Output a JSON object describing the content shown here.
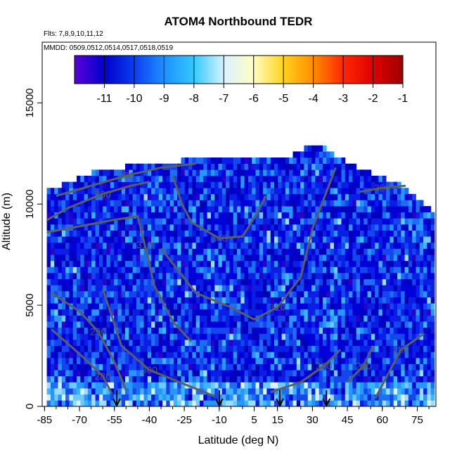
{
  "chart_data": {
    "type": "heatmap",
    "title": "ATOM4 Northbound TEDR",
    "subtitle_flights": "Flts: 7,8,9,10,11,12",
    "subtitle_dates": "MMDD: 0509,0512,0514,0517,0518,0519",
    "xlabel": "Latitude (deg N)",
    "ylabel": "Altitude (m)",
    "xlim": [
      -86,
      83
    ],
    "ylim": [
      0,
      18000
    ],
    "x_ticks": [
      -85,
      -70,
      -55,
      -40,
      -25,
      -10,
      5,
      15,
      30,
      45,
      60,
      75
    ],
    "y_ticks": [
      0,
      5000,
      10000,
      15000
    ],
    "grid": false,
    "colorbar": {
      "ticks": [
        -11,
        -10,
        -9,
        -8,
        -7,
        -6,
        -5,
        -4,
        -3,
        -2,
        -1
      ],
      "range": [
        -12,
        -1
      ],
      "colors": [
        "#5a00d8",
        "#0000cc",
        "#0a3ef0",
        "#1e90ff",
        "#33c8ff",
        "#d9f2ff",
        "#ffffc0",
        "#ffd21e",
        "#ff8c00",
        "#ff2800",
        "#e00000",
        "#9b0000"
      ],
      "placement": "top inside plot"
    },
    "data_extent": {
      "lat_range": [
        -84,
        82
      ],
      "alt_top_by_lat": [
        {
          "lat": -84,
          "alt": 10500
        },
        {
          "lat": -73,
          "alt": 11000
        },
        {
          "lat": -60,
          "alt": 11600
        },
        {
          "lat": -40,
          "alt": 11800
        },
        {
          "lat": -5,
          "alt": 12300
        },
        {
          "lat": 22,
          "alt": 12300
        },
        {
          "lat": 32,
          "alt": 12900
        },
        {
          "lat": 45,
          "alt": 11900
        },
        {
          "lat": 68,
          "alt": 10800
        },
        {
          "lat": 82,
          "alt": 9400
        }
      ]
    },
    "contours": [
      {
        "label": "350",
        "points": [
          [
            -80,
            10400
          ],
          [
            -65,
            10900
          ],
          [
            -50,
            11400
          ],
          [
            -35,
            11800
          ],
          [
            -20,
            12000
          ]
        ]
      },
      {
        "label": "330",
        "points": [
          [
            -84,
            9200
          ],
          [
            -75,
            9800
          ],
          [
            -60,
            10500
          ],
          [
            -48,
            10900
          ],
          [
            -40,
            11100
          ]
        ]
      },
      {
        "label": "310",
        "points": [
          [
            -84,
            8600
          ],
          [
            -70,
            8900
          ],
          [
            -56,
            9200
          ],
          [
            -45,
            9400
          ],
          [
            -42,
            8000
          ],
          [
            -38,
            6000
          ],
          [
            -30,
            4200
          ],
          [
            -22,
            3200
          ]
        ]
      },
      {
        "label": "340",
        "points": [
          [
            -30,
            11400
          ],
          [
            -26,
            10000
          ],
          [
            -22,
            9100
          ],
          [
            -10,
            8300
          ],
          [
            0,
            8400
          ],
          [
            6,
            9500
          ],
          [
            10,
            10400
          ]
        ]
      },
      {
        "label": "320",
        "points": [
          [
            -35,
            7800
          ],
          [
            -20,
            5600
          ],
          [
            -5,
            4900
          ],
          [
            5,
            4300
          ],
          [
            15,
            4900
          ],
          [
            25,
            6400
          ],
          [
            30,
            8800
          ],
          [
            37,
            10900
          ],
          [
            40,
            11800
          ]
        ]
      },
      {
        "label": "290",
        "points": [
          [
            -82,
            5600
          ],
          [
            -70,
            4700
          ],
          [
            -62,
            3700
          ],
          [
            -55,
            2200
          ],
          [
            -50,
            800
          ]
        ]
      },
      {
        "label": "280",
        "points": [
          [
            -82,
            3800
          ],
          [
            -70,
            2600
          ],
          [
            -60,
            1500
          ],
          [
            -56,
            600
          ]
        ]
      },
      {
        "label": "300",
        "points": [
          [
            -60,
            5800
          ],
          [
            -52,
            3000
          ],
          [
            -40,
            1800
          ],
          [
            -25,
            1100
          ],
          [
            -12,
            500
          ]
        ]
      },
      {
        "label": "300",
        "points": [
          [
            12,
            700
          ],
          [
            25,
            1200
          ],
          [
            35,
            2000
          ],
          [
            42,
            2800
          ]
        ]
      },
      {
        "label": "290",
        "points": [
          [
            45,
            1200
          ],
          [
            52,
            2000
          ],
          [
            56,
            3000
          ]
        ]
      },
      {
        "label": "280",
        "points": [
          [
            57,
            400
          ],
          [
            62,
            1500
          ],
          [
            68,
            2800
          ],
          [
            78,
            3600
          ]
        ]
      },
      {
        "label": "350",
        "points": [
          [
            50,
            10600
          ],
          [
            60,
            10800
          ],
          [
            70,
            10900
          ]
        ]
      }
    ],
    "arrows_lat": [
      -54,
      -10,
      16,
      36
    ]
  }
}
